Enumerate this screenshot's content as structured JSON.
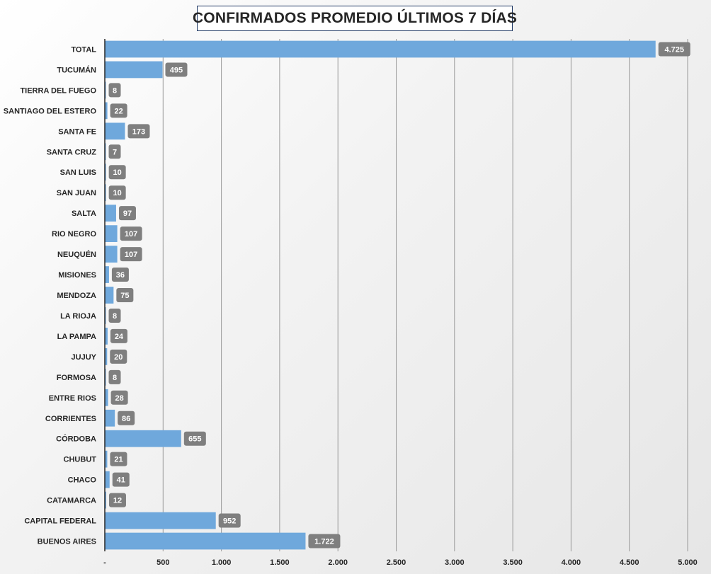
{
  "chart_data": {
    "type": "bar",
    "orientation": "horizontal",
    "title": "CONFIRMADOS PROMEDIO ÚLTIMOS 7 DÍAS",
    "xlabel": "",
    "ylabel": "",
    "xlim": [
      0,
      5000
    ],
    "x_ticks": [
      0,
      500,
      1000,
      1500,
      2000,
      2500,
      3000,
      3500,
      4000,
      4500,
      5000
    ],
    "x_tick_labels": [
      "-",
      "500",
      "1.000",
      "1.500",
      "2.000",
      "2.500",
      "3.000",
      "3.500",
      "4.000",
      "4.500",
      "5.000"
    ],
    "grid": "vertical",
    "legend": "none",
    "bar_color": "#6fa8dc",
    "label_box_color": "#7f7f7f",
    "categories": [
      "TOTAL",
      "TUCUMÁN",
      "TIERRA DEL FUEGO",
      "SANTIAGO DEL ESTERO",
      "SANTA FE",
      "SANTA CRUZ",
      "SAN LUIS",
      "SAN JUAN",
      "SALTA",
      "RIO NEGRO",
      "NEUQUÉN",
      "MISIONES",
      "MENDOZA",
      "LA RIOJA",
      "LA PAMPA",
      "JUJUY",
      "FORMOSA",
      "ENTRE RIOS",
      "CORRIENTES",
      "CÓRDOBA",
      "CHUBUT",
      "CHACO",
      "CATAMARCA",
      "CAPITAL FEDERAL",
      "BUENOS AIRES"
    ],
    "values": [
      4725,
      495,
      8,
      22,
      173,
      7,
      10,
      10,
      97,
      107,
      107,
      36,
      75,
      8,
      24,
      20,
      8,
      28,
      86,
      655,
      21,
      41,
      12,
      952,
      1722
    ],
    "value_labels": [
      "4.725",
      "495",
      "8",
      "22",
      "173",
      "7",
      "10",
      "10",
      "97",
      "107",
      "107",
      "36",
      "75",
      "8",
      "24",
      "20",
      "8",
      "28",
      "86",
      "655",
      "21",
      "41",
      "12",
      "952",
      "1.722"
    ]
  }
}
